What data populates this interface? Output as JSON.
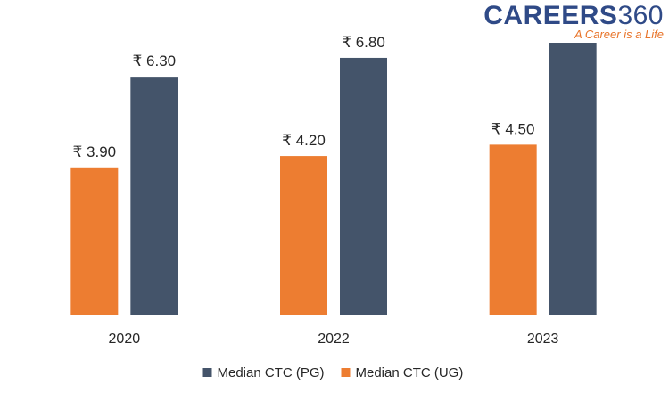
{
  "logo": {
    "brand_primary": "CAREERS",
    "brand_secondary": "360",
    "tagline": "A Career is a Life",
    "brand_color": "#2f4a87",
    "tagline_color": "#e8742a"
  },
  "chart_data": {
    "type": "bar",
    "categories": [
      "2020",
      "2022",
      "2023"
    ],
    "series": [
      {
        "name": "Median CTC (UG)",
        "color": "#ed7d31",
        "values": [
          3.9,
          4.2,
          4.5
        ],
        "labels": [
          "₹ 3.90",
          "₹ 4.20",
          "₹ 4.50"
        ]
      },
      {
        "name": "Median CTC (PG)",
        "color": "#44546a",
        "values": [
          6.3,
          6.8,
          7.2
        ],
        "labels": [
          "₹ 6.30",
          "₹ 6.80",
          ""
        ]
      }
    ],
    "legend_order": [
      "Median CTC (PG)",
      "Median CTC (UG)"
    ],
    "legend_position": "bottom",
    "ylim": [
      0,
      7.2
    ],
    "grid": false,
    "title": "",
    "xlabel": "",
    "ylabel": ""
  }
}
